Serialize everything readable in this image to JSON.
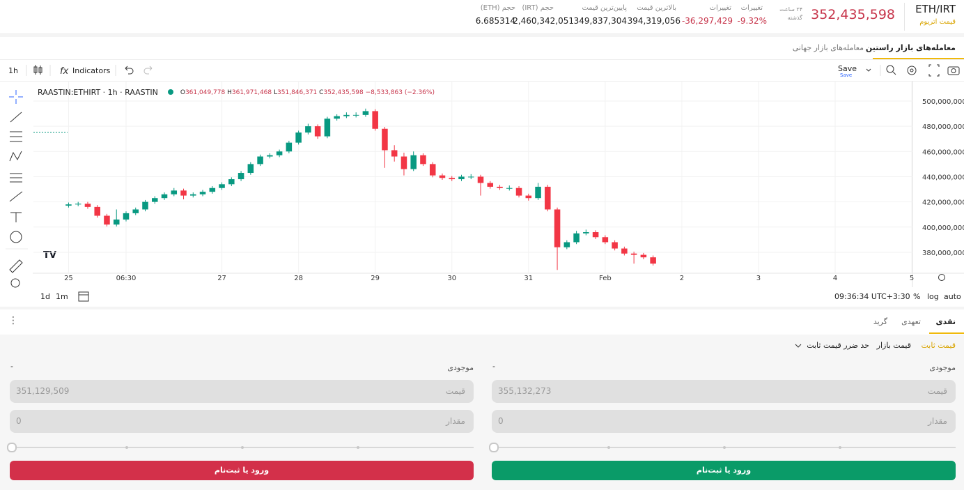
{
  "header": {
    "pair": "ETH/IRT",
    "asset_name": "قیمت اتریوم",
    "last_price": "352,435,598",
    "period_line1": "۲۴ ساعت",
    "period_line2": "گذشته",
    "stats": [
      {
        "label": "تغییرات",
        "value": "-9.32%"
      },
      {
        "label": "تغییرات",
        "value": "-36,297,429"
      },
      {
        "label": "بالاترین قیمت",
        "value": "394,319,056"
      },
      {
        "label": "پایین‌ترین قیمت",
        "value": "349,837,304"
      },
      {
        "label": "حجم (IRT)",
        "value": "2,460,342,051"
      },
      {
        "label": "حجم (ETH)",
        "value": "6.685314"
      }
    ]
  },
  "market_tabs": [
    "معامله‌های بازار راستین",
    "معامله‌های بازار جهانی"
  ],
  "toolbar": {
    "interval": "1h",
    "indicators": "Indicators",
    "save": "Save",
    "save_sub": "Save"
  },
  "chart_data": {
    "type": "candlestick",
    "symbol": "RAASTIN:ETHIRT · 1h · RAASTIN",
    "legend_values": [
      {
        "label": "O",
        "value": "361,049,778"
      },
      {
        "label": "H",
        "value": "361,971,468"
      },
      {
        "label": "L",
        "value": "351,846,371"
      },
      {
        "label": "C",
        "value": "352,435,598"
      }
    ],
    "change": "−8,533,863 (−2.36%)",
    "up_color": "#089981",
    "down_color": "#f23645",
    "grid": true,
    "x": [
      0,
      3,
      6,
      9,
      12,
      15,
      18,
      21,
      24,
      27,
      30,
      33,
      36,
      39,
      42,
      45,
      48,
      51,
      54,
      57,
      60,
      63,
      66,
      69,
      72,
      75,
      78,
      81,
      84,
      87,
      90,
      93,
      96,
      99,
      102,
      105,
      108,
      111,
      114,
      117,
      120,
      123,
      126,
      129,
      132,
      135,
      138,
      141,
      144,
      147,
      150,
      153,
      156,
      159,
      162,
      165,
      168,
      171,
      174,
      177,
      180,
      183
    ],
    "open": [
      417000000,
      418000000,
      418500000,
      416000000,
      409000000,
      402000000,
      406000000,
      411000000,
      414000000,
      420000000,
      423000000,
      426000000,
      429000000,
      425000000,
      426000000,
      428000000,
      431000000,
      434000000,
      438000000,
      443000000,
      450000000,
      456000000,
      457000000,
      460000000,
      467000000,
      475000000,
      480000000,
      472000000,
      486000000,
      488000000,
      489000000,
      489000000,
      492000000,
      478000000,
      461000000,
      456000000,
      446000000,
      457000000,
      450000000,
      441000000,
      439000000,
      438000000,
      440000000,
      440000000,
      435000000,
      432000000,
      431000000,
      431000000,
      425000000,
      423000000,
      432000000,
      414000000,
      384000000,
      388000000,
      395000000,
      396000000,
      392000000,
      388000000,
      383000000,
      379000000,
      378000000,
      376000000
    ],
    "high": [
      419500000,
      420000000,
      420000000,
      417500000,
      410500000,
      414000000,
      412500000,
      415500000,
      421500000,
      424500000,
      427500000,
      431000000,
      430500000,
      427500000,
      429500000,
      432500000,
      435500000,
      439500000,
      444500000,
      451500000,
      457500000,
      458500000,
      461500000,
      468500000,
      476500000,
      482000000,
      481500000,
      487500000,
      489500000,
      491000000,
      491000000,
      494000000,
      493500000,
      479500000,
      465000000,
      459000000,
      460000000,
      458500000,
      451500000,
      442500000,
      440500000,
      441500000,
      442000000,
      441500000,
      436500000,
      433500000,
      433000000,
      432500000,
      426500000,
      435000000,
      433500000,
      415500000,
      389500000,
      397000000,
      398000000,
      397500000,
      393500000,
      389500000,
      384500000,
      380500000,
      379500000,
      377500000
    ],
    "low": [
      415500000,
      416500000,
      414500000,
      407500000,
      400500000,
      400500000,
      404500000,
      409500000,
      412500000,
      418500000,
      421500000,
      424500000,
      422000000,
      423500000,
      424500000,
      426500000,
      429500000,
      432500000,
      436500000,
      441500000,
      448500000,
      454500000,
      455500000,
      458500000,
      465500000,
      473500000,
      470000000,
      470500000,
      484500000,
      486500000,
      487000000,
      487500000,
      476500000,
      447000000,
      452000000,
      441000000,
      444500000,
      448500000,
      439500000,
      437500000,
      436500000,
      436500000,
      438000000,
      425000000,
      430500000,
      429500000,
      429000000,
      423500000,
      421000000,
      421500000,
      412500000,
      366000000,
      382500000,
      386500000,
      393500000,
      390500000,
      386500000,
      381500000,
      377500000,
      371000000,
      374500000,
      369500000
    ],
    "close": [
      418000000,
      418500000,
      416000000,
      409000000,
      402000000,
      406000000,
      411000000,
      414000000,
      420000000,
      423000000,
      426000000,
      429000000,
      425000000,
      426000000,
      428000000,
      431000000,
      434000000,
      438000000,
      443000000,
      450000000,
      456000000,
      457000000,
      460000000,
      467000000,
      475000000,
      480000000,
      472000000,
      486000000,
      488000000,
      489000000,
      489000000,
      492000000,
      478000000,
      461000000,
      456000000,
      446000000,
      457000000,
      450000000,
      441000000,
      439000000,
      438000000,
      440000000,
      440000000,
      435000000,
      432000000,
      431000000,
      431000000,
      425000000,
      423000000,
      432000000,
      414000000,
      384000000,
      388000000,
      395000000,
      396000000,
      392000000,
      388000000,
      383000000,
      379000000,
      378000000,
      376000000,
      371000000
    ],
    "ylim": [
      365600000,
      512700000
    ],
    "yticks": [
      {
        "value": 380000000,
        "label": "380,000,000"
      },
      {
        "value": 400000000,
        "label": "400,000,000"
      },
      {
        "value": 420000000,
        "label": "420,000,000"
      },
      {
        "value": 440000000,
        "label": "440,000,000"
      },
      {
        "value": 460000000,
        "label": "460,000,000"
      },
      {
        "value": 480000000,
        "label": "480,000,000"
      },
      {
        "value": 500000000,
        "label": "500,000,000"
      }
    ],
    "xlim": [
      -11,
      264.2
    ],
    "xticks": [
      {
        "value": 0,
        "label": "25"
      },
      {
        "value": 18,
        "label": "06:30"
      },
      {
        "value": 48,
        "label": "27"
      },
      {
        "value": 72,
        "label": "28"
      },
      {
        "value": 96,
        "label": "29"
      },
      {
        "value": 120,
        "label": "30"
      },
      {
        "value": 144,
        "label": "31"
      },
      {
        "value": 168,
        "label": "Feb"
      },
      {
        "value": 192,
        "label": "2"
      },
      {
        "value": 216,
        "label": "3"
      },
      {
        "value": 240,
        "label": "4"
      },
      {
        "value": 264,
        "label": "5"
      }
    ]
  },
  "chart_footer": {
    "ranges": [
      "1d",
      "1m"
    ],
    "clock": "09:36:34 UTC+3:30",
    "options": [
      "%",
      "log",
      "auto"
    ]
  },
  "trade_tabs": [
    "نقدی",
    "تعهدی",
    "گرید"
  ],
  "order_types": [
    "قیمت ثابت",
    "قیمت بازار",
    "حد ضرر قیمت ثابت"
  ],
  "forms": [
    {
      "balance_label": "موجودی",
      "balance": "-",
      "price_label": "قیمت",
      "price": "355,132,273",
      "amount_label": "مقدار",
      "amount": "0",
      "button": "ورود یا ثبت‌نام"
    },
    {
      "balance_label": "موجودی",
      "balance": "-",
      "price_label": "قیمت",
      "price": "351,129,509",
      "amount_label": "مقدار",
      "amount": "0",
      "button": "ورود یا ثبت‌نام"
    }
  ]
}
